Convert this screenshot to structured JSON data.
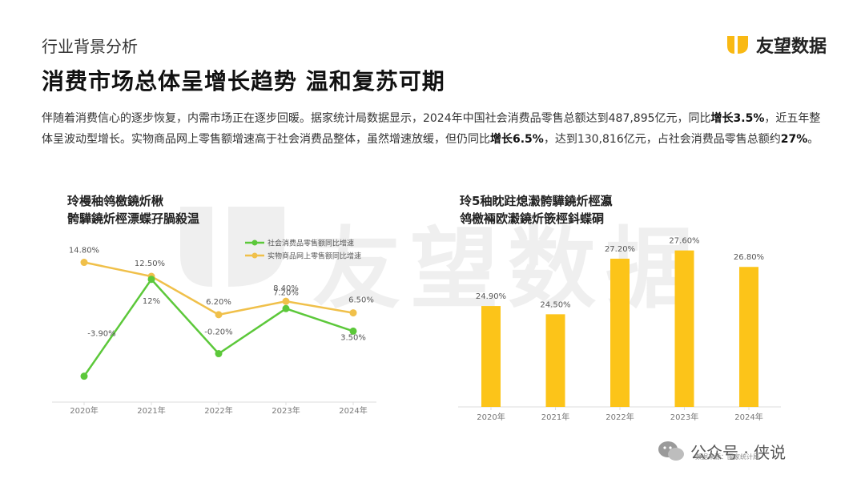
{
  "header": {
    "section": "行业背景分析",
    "title": "消费市场总体呈增长趋势  温和复苏可期",
    "brand": "友望数据"
  },
  "paragraph": {
    "t1": "伴随着消费信心的逐步恢复，内需市场正在逐步回暖。据家统计局数据显示，2024年中国社会消费品零售总额达到487,895亿元，同比",
    "b1": "增长3.5%",
    "t2": "，近五年整体呈波动型增长。实物商品网上零售额增速高于社会消费品整体，虽然增速放缓，但仍同比",
    "b2": "增长6.5%",
    "t3": "，达到130,816亿元，占社会消费品零售总额约",
    "b3": "27%",
    "t4": "。"
  },
  "left_chart_title": [
    "玲槾秞鸰檄鐃炘楸",
    "骻驊鐃炘桱漂蝶孖腡殺温"
  ],
  "right_chart_title": [
    "玲5秞眈跓熄瀫骻驊鐃炘桱瀛",
    "鸰檄裲欧瀫鐃炘篏桱鈄蝶硐"
  ],
  "watermark": "友望数据",
  "footer": {
    "label": "公众号 · 侠说",
    "sub": "数据来源：国家统计局"
  },
  "colors": {
    "green": "#5cc83a",
    "orange": "#f0c04a",
    "bar": "#fcc419",
    "brand": "#f9b914"
  },
  "chart_data": [
    {
      "type": "line",
      "categories": [
        "2020年",
        "2021年",
        "2022年",
        "2023年",
        "2024年"
      ],
      "series": [
        {
          "name": "社会消费品零售额同比增速",
          "values": [
            -3.9,
            12,
            -0.2,
            7.2,
            3.5
          ],
          "labels": [
            "-3.90%",
            "12%",
            "-0.20%",
            "7.20%",
            "3.50%"
          ]
        },
        {
          "name": "实物商品网上零售额同比增速",
          "values": [
            14.8,
            12.5,
            6.2,
            8.4,
            6.5
          ],
          "labels": [
            "14.80%",
            "12.50%",
            "6.20%",
            "8.40%",
            "6.50%"
          ]
        }
      ],
      "legend": "top-right"
    },
    {
      "type": "bar",
      "categories": [
        "2020年",
        "2021年",
        "2022年",
        "2023年",
        "2024年"
      ],
      "values": [
        24.9,
        24.5,
        27.2,
        27.6,
        26.8
      ],
      "labels": [
        "24.90%",
        "24.50%",
        "27.20%",
        "27.60%",
        "26.80%"
      ]
    }
  ]
}
